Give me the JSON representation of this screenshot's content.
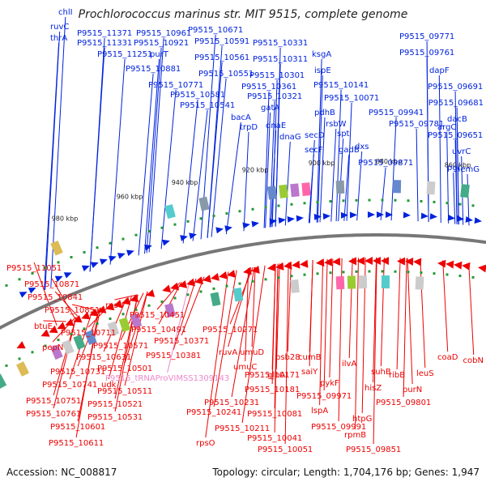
{
  "title": "Prochlorococcus marinus str. MIT 9515, complete genome",
  "accession": "Accession: NC_008817",
  "summary": "Topology: circular; Length: 1,704,176 bp; Genes: 1,947",
  "colors": {
    "forward": "#0022dd",
    "reverse": "#ee0000",
    "trna": "#ee88cc",
    "backbone": "#777777"
  },
  "kbp_ticks": [
    "980 kbp",
    "960 kbp",
    "940 kbp",
    "920 kbp",
    "900 kbp",
    "880 kbp",
    "860 kbp"
  ],
  "forward_labels": [
    "chlI",
    "ruvC",
    "thrA",
    "P9515_11371",
    "P9515_10961",
    "P9515_10671",
    "P9515_11331",
    "P9515_10921",
    "P9515_10591",
    "P9515_10331",
    "P9515_11251",
    "purT",
    "ksgA",
    "P9515_10561",
    "P9515_10311",
    "ispE",
    "P9515_10881",
    "P9515_10551",
    "P9515_10301",
    "P9515_10771",
    "P9515_10361",
    "P9515_10141",
    "P9515_10581",
    "P9515_10321",
    "P9515_10071",
    "P9515_10541",
    "gatA",
    "pdhB",
    "bacA",
    "trpD",
    "dnaE",
    "dnaG",
    "secD",
    "spt",
    "rsbW",
    "secF",
    "gadB",
    "dxs",
    "P9515_09941",
    "P9515_09871",
    "P9515_09771",
    "P9515_09761",
    "dapF",
    "P9515_09691",
    "P9515_09681",
    "dacB",
    "P9515_09781",
    "argC",
    "P9515_09651",
    "uvrC",
    "pgi",
    "hemG"
  ],
  "reverse_labels": [
    "P9515_11051",
    "P9515_10871",
    "P9515_10841",
    "P9515_10851",
    "btuE",
    "pepN",
    "rpsU",
    "P9515_10711",
    "P9515_10451",
    "P9515_10491",
    "P9515_10571",
    "P9515_10631",
    "P9515_10371",
    "P9515_10381",
    "P9515_10501",
    "P9515_10731",
    "P9515_tRNAProVIMSS1309143",
    "P9515_10741",
    "udk",
    "P9515_10511",
    "P9515_10751",
    "P9515_10521",
    "P9515_10761",
    "P9515_10531",
    "P9515_10601",
    "P9515_10611",
    "P9515_10271",
    "ruvA",
    "umuD",
    "umuC",
    "P9515_10171",
    "P9515_10181",
    "P9515_10231",
    "P9515_10241",
    "P9515_10211",
    "rpsO",
    "psb28",
    "cumB",
    "glnA",
    "saiY",
    "ilvA",
    "pykF",
    "P9515_10081",
    "P9515_09971",
    "lspA",
    "P9515_10041",
    "P9515_10051",
    "P9515_09991",
    "rpmB",
    "htpG",
    "P9515_09851",
    "suhB",
    "hisZ",
    "P9515_09801",
    "ribB",
    "purN",
    "leuS",
    "coaD",
    "cobN"
  ]
}
